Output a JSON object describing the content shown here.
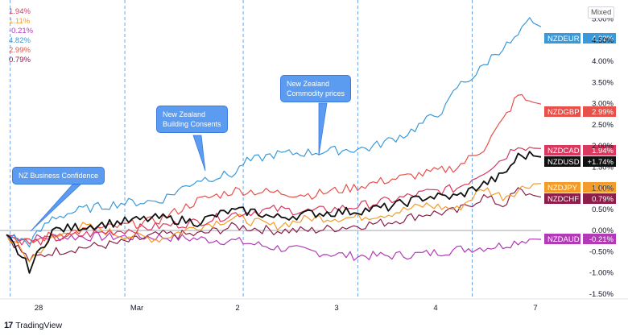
{
  "scale_button_label": "Mixed",
  "branding": {
    "logo_text": "17",
    "name": "TradingView"
  },
  "callouts": [
    {
      "text_lines": [
        "NZ Business Confidence"
      ]
    },
    {
      "text_lines": [
        "New Zealand",
        "Building Consents"
      ]
    },
    {
      "text_lines": [
        "New Zealand",
        "Commodity prices"
      ]
    }
  ],
  "chart_data": {
    "type": "line",
    "x_ticks": [
      "28",
      "Mar",
      "2",
      "3",
      "4",
      "7"
    ],
    "y_ticks": [
      "5.00%",
      "4.50%",
      "4.00%",
      "3.50%",
      "3.00%",
      "2.50%",
      "2.00%",
      "1.50%",
      "1.00%",
      "0.50%",
      "0.00%",
      "-0.50%",
      "-1.00%",
      "-1.50%"
    ],
    "ylim": [
      -1.6,
      5.3
    ],
    "n_points": 120,
    "event_lines": [
      1,
      31,
      62,
      92,
      122
    ],
    "legend_values": [
      "1.94%",
      "1.11%",
      "-0.21%",
      "4.82%",
      "2.99%",
      "0.79%"
    ],
    "colors": {
      "NZDEUR": "#3a9ad9",
      "NZDGBP": "#e8504a",
      "NZDCAD": "#d9385f",
      "NZDUSD": "#111111",
      "NZDJPY": "#f39c2a",
      "NZDCHF": "#8b1f4a",
      "NZDAUD": "#b23ab7"
    },
    "series": [
      {
        "name": "NZDEUR",
        "label_value": "4.82%",
        "anchors": [
          [
            0,
            -0.1
          ],
          [
            6,
            -0.3
          ],
          [
            12,
            0.3
          ],
          [
            20,
            0.5
          ],
          [
            30,
            0.65
          ],
          [
            40,
            0.7
          ],
          [
            50,
            1.2
          ],
          [
            60,
            1.35
          ],
          [
            62,
            1.6
          ],
          [
            70,
            1.8
          ],
          [
            80,
            1.85
          ],
          [
            95,
            1.95
          ],
          [
            105,
            2.3
          ],
          [
            115,
            2.9
          ],
          [
            118,
            3.4
          ],
          [
            123,
            3.7
          ],
          [
            128,
            4.2
          ],
          [
            133,
            4.5
          ],
          [
            137,
            4.95
          ],
          [
            140,
            4.82
          ]
        ]
      },
      {
        "name": "NZDGBP",
        "label_value": "2.99%",
        "anchors": [
          [
            0,
            -0.1
          ],
          [
            6,
            -0.3
          ],
          [
            12,
            -0.1
          ],
          [
            20,
            0.0
          ],
          [
            30,
            0.1
          ],
          [
            40,
            0.25
          ],
          [
            50,
            0.7
          ],
          [
            60,
            0.95
          ],
          [
            70,
            0.9
          ],
          [
            80,
            0.85
          ],
          [
            90,
            1.0
          ],
          [
            100,
            1.2
          ],
          [
            110,
            1.35
          ],
          [
            118,
            1.5
          ],
          [
            125,
            1.95
          ],
          [
            130,
            2.6
          ],
          [
            134,
            3.2
          ],
          [
            137,
            3.05
          ],
          [
            140,
            2.99
          ]
        ]
      },
      {
        "name": "NZDCAD",
        "label_value": "1.94%",
        "anchors": [
          [
            0,
            -0.1
          ],
          [
            6,
            -0.3
          ],
          [
            12,
            -0.2
          ],
          [
            20,
            -0.1
          ],
          [
            30,
            0.0
          ],
          [
            40,
            0.1
          ],
          [
            50,
            0.2
          ],
          [
            60,
            0.4
          ],
          [
            70,
            0.5
          ],
          [
            80,
            0.45
          ],
          [
            90,
            0.55
          ],
          [
            100,
            0.7
          ],
          [
            110,
            0.9
          ],
          [
            118,
            1.0
          ],
          [
            125,
            1.4
          ],
          [
            130,
            1.7
          ],
          [
            134,
            2.05
          ],
          [
            137,
            1.95
          ],
          [
            140,
            1.94
          ]
        ]
      },
      {
        "name": "NZDUSD",
        "label_value": "+1.74%",
        "anchors": [
          [
            0,
            -0.1
          ],
          [
            6,
            -0.9
          ],
          [
            12,
            0.0
          ],
          [
            20,
            0.1
          ],
          [
            30,
            0.2
          ],
          [
            40,
            0.3
          ],
          [
            50,
            0.2
          ],
          [
            58,
            0.45
          ],
          [
            65,
            0.45
          ],
          [
            70,
            0.3
          ],
          [
            80,
            0.4
          ],
          [
            90,
            0.45
          ],
          [
            100,
            0.55
          ],
          [
            110,
            0.8
          ],
          [
            118,
            0.8
          ],
          [
            125,
            1.1
          ],
          [
            130,
            1.3
          ],
          [
            134,
            1.75
          ],
          [
            137,
            1.78
          ],
          [
            140,
            1.74
          ]
        ]
      },
      {
        "name": "NZDJPY",
        "label_value": "1.11%",
        "anchors": [
          [
            0,
            -0.1
          ],
          [
            6,
            -0.7
          ],
          [
            12,
            -0.2
          ],
          [
            20,
            0.1
          ],
          [
            30,
            -0.1
          ],
          [
            40,
            -0.2
          ],
          [
            50,
            0.1
          ],
          [
            60,
            0.3
          ],
          [
            70,
            0.1
          ],
          [
            80,
            0.3
          ],
          [
            90,
            0.3
          ],
          [
            100,
            0.4
          ],
          [
            110,
            0.6
          ],
          [
            118,
            0.5
          ],
          [
            125,
            1.0
          ],
          [
            130,
            0.8
          ],
          [
            134,
            0.95
          ],
          [
            137,
            1.1
          ],
          [
            140,
            1.11
          ]
        ]
      },
      {
        "name": "NZDCHF",
        "label_value": "0.79%",
        "anchors": [
          [
            0,
            -0.1
          ],
          [
            6,
            -0.7
          ],
          [
            12,
            -0.5
          ],
          [
            20,
            -0.4
          ],
          [
            30,
            -0.3
          ],
          [
            40,
            -0.1
          ],
          [
            50,
            -0.1
          ],
          [
            60,
            0.1
          ],
          [
            70,
            0.0
          ],
          [
            80,
            0.0
          ],
          [
            90,
            0.1
          ],
          [
            100,
            0.2
          ],
          [
            110,
            0.4
          ],
          [
            118,
            0.45
          ],
          [
            125,
            0.8
          ],
          [
            130,
            0.6
          ],
          [
            134,
            0.95
          ],
          [
            137,
            0.85
          ],
          [
            140,
            0.79
          ]
        ]
      },
      {
        "name": "NZDAUD",
        "label_value": "-0.21%",
        "anchors": [
          [
            0,
            -0.1
          ],
          [
            6,
            -0.2
          ],
          [
            12,
            -0.15
          ],
          [
            20,
            -0.15
          ],
          [
            30,
            -0.15
          ],
          [
            40,
            -0.15
          ],
          [
            50,
            -0.2
          ],
          [
            60,
            -0.25
          ],
          [
            70,
            -0.4
          ],
          [
            80,
            -0.5
          ],
          [
            90,
            -0.6
          ],
          [
            100,
            -0.6
          ],
          [
            110,
            -0.55
          ],
          [
            118,
            -0.45
          ],
          [
            125,
            -0.4
          ],
          [
            130,
            -0.35
          ],
          [
            134,
            -0.25
          ],
          [
            137,
            -0.2
          ],
          [
            140,
            -0.21
          ]
        ]
      }
    ]
  }
}
